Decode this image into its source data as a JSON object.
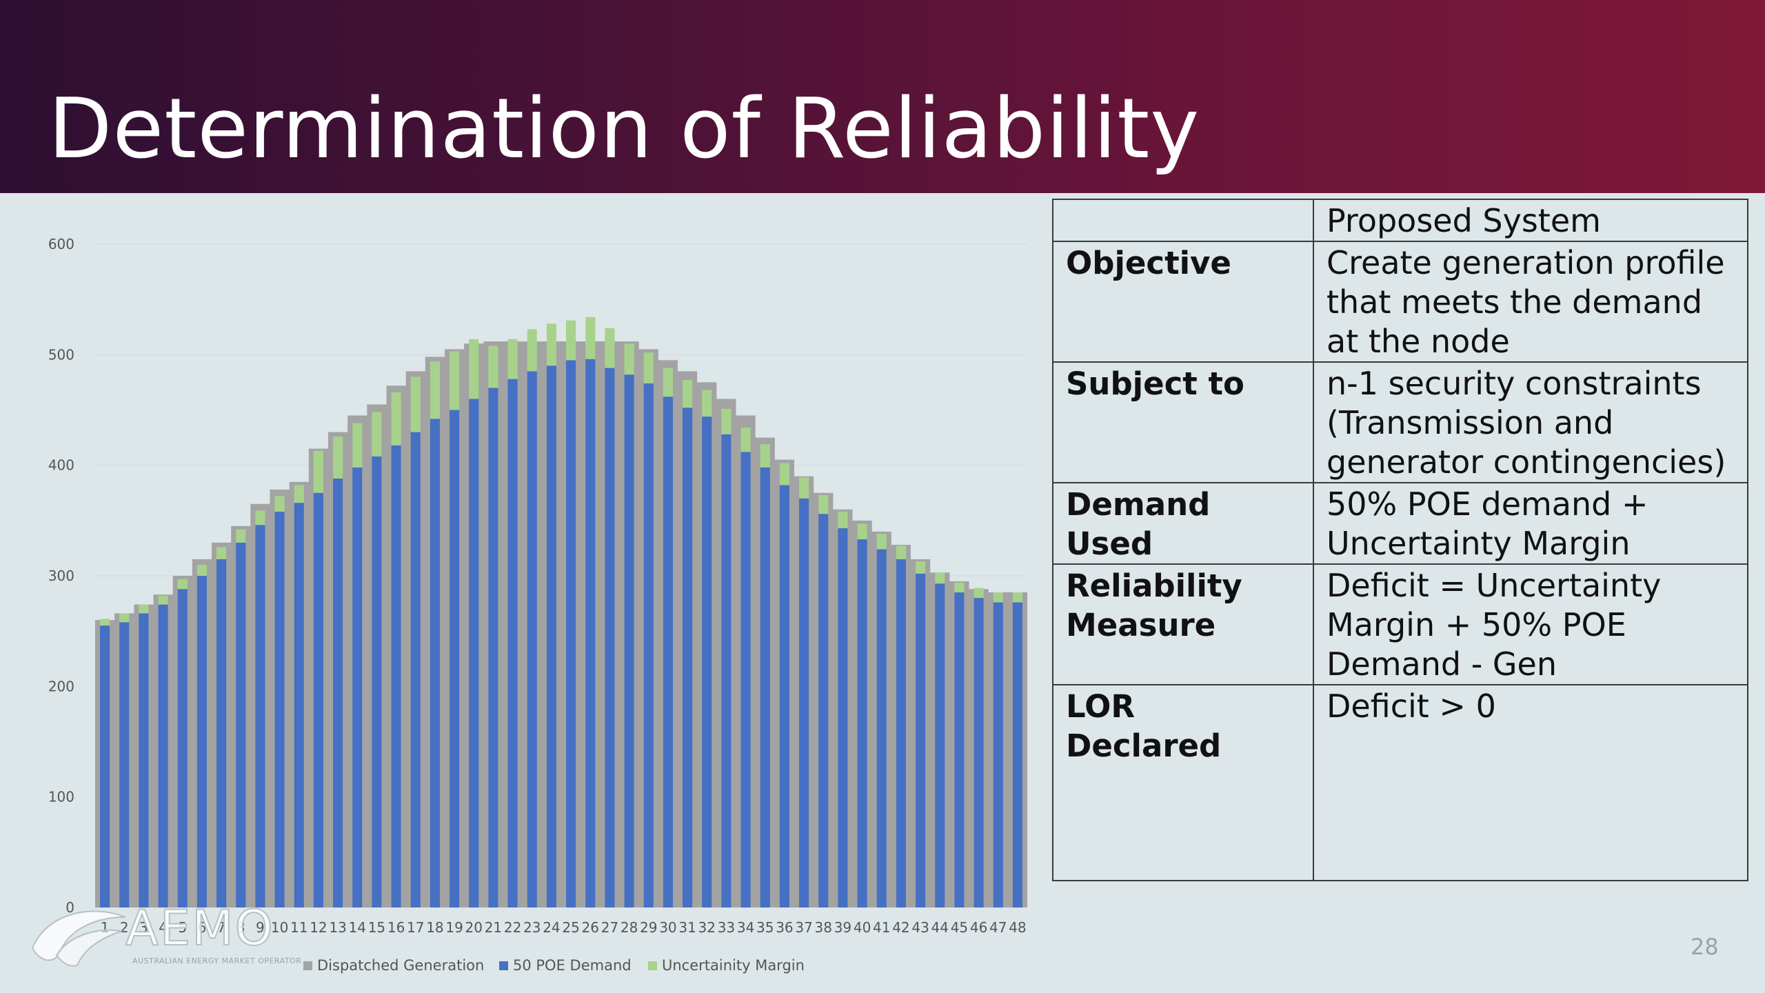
{
  "slide": {
    "title": "Determination of Reliability",
    "page_number": "28",
    "logo_text": "AEMO",
    "logo_subtitle": "AUSTRALIAN ENERGY MARKET OPERATOR"
  },
  "colors": {
    "dispatched": "#a3a3a3",
    "demand": "#4570c4",
    "uncertainty": "#a7d28c"
  },
  "table": {
    "header": [
      "",
      "Proposed System"
    ],
    "rows": [
      {
        "key": "Objective",
        "value": "Create generation profile that meets the demand at the node"
      },
      {
        "key": "Subject to",
        "value": "n-1 security constraints (Transmission and generator contingencies)"
      },
      {
        "key": "Demand Used",
        "value": "50% POE demand + Uncertainty Margin"
      },
      {
        "key": "Reliability Measure",
        "value": "Deficit = Uncertainty Margin + 50% POE Demand  - Gen"
      },
      {
        "key": "LOR Declared",
        "value": "Deficit > 0"
      }
    ]
  },
  "chart_data": {
    "type": "bar",
    "categories": [
      "1",
      "2",
      "3",
      "4",
      "5",
      "6",
      "7",
      "8",
      "9",
      "10",
      "11",
      "12",
      "13",
      "14",
      "15",
      "16",
      "17",
      "18",
      "19",
      "20",
      "21",
      "22",
      "23",
      "24",
      "25",
      "26",
      "27",
      "28",
      "29",
      "30",
      "31",
      "32",
      "33",
      "34",
      "35",
      "36",
      "37",
      "38",
      "39",
      "40",
      "41",
      "42",
      "43",
      "44",
      "45",
      "46",
      "47",
      "48"
    ],
    "series": [
      {
        "name": "Dispatched Generation",
        "values": [
          260,
          266,
          274,
          283,
          300,
          315,
          330,
          345,
          365,
          378,
          385,
          415,
          430,
          445,
          455,
          472,
          485,
          498,
          505,
          510,
          512,
          512,
          512,
          512,
          512,
          512,
          512,
          512,
          505,
          495,
          485,
          475,
          460,
          445,
          425,
          405,
          390,
          375,
          360,
          350,
          340,
          328,
          315,
          303,
          295,
          288,
          285,
          285
        ]
      },
      {
        "name": "50 POE Demand",
        "values": [
          255,
          258,
          266,
          274,
          288,
          300,
          315,
          330,
          346,
          358,
          366,
          375,
          388,
          398,
          408,
          418,
          430,
          442,
          450,
          460,
          470,
          478,
          485,
          490,
          495,
          496,
          488,
          482,
          474,
          462,
          452,
          444,
          428,
          412,
          398,
          382,
          370,
          356,
          343,
          333,
          324,
          315,
          302,
          293,
          285,
          280,
          276,
          276
        ]
      },
      {
        "name": "Uncertainity Margin",
        "values": [
          6,
          8,
          8,
          8,
          9,
          10,
          11,
          12,
          13,
          14,
          16,
          38,
          38,
          40,
          40,
          48,
          50,
          52,
          53,
          54,
          38,
          36,
          38,
          38,
          36,
          38,
          36,
          28,
          28,
          26,
          25,
          24,
          23,
          22,
          21,
          20,
          19,
          17,
          15,
          14,
          14,
          12,
          11,
          10,
          9,
          9,
          9,
          9
        ]
      }
    ],
    "ylim": [
      0,
      600
    ],
    "yticks": [
      0,
      100,
      200,
      300,
      400,
      500,
      600
    ],
    "legend": [
      "Dispatched Generation",
      "50 POE Demand",
      "Uncertainity Margin"
    ],
    "legend_position": "bottom",
    "grid": false
  }
}
